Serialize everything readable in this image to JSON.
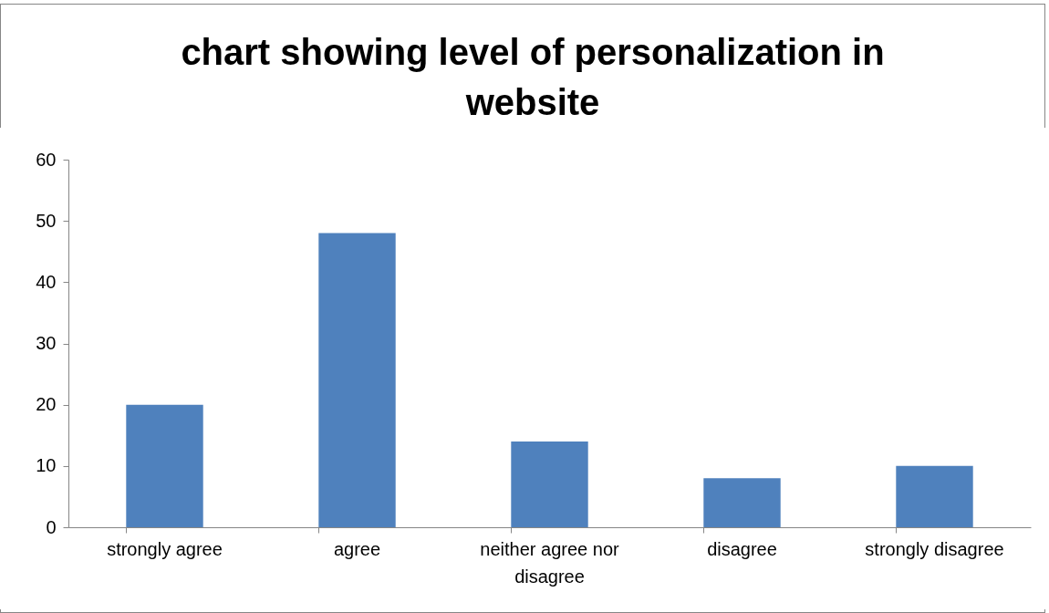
{
  "chart_data": {
    "type": "bar",
    "title": "chart showing level of personalization in website",
    "categories": [
      "strongly agree",
      "agree",
      "neither agree nor disagree",
      "disagree",
      "strongly disagree"
    ],
    "values": [
      20,
      48,
      14,
      8,
      10
    ],
    "color": "#4f81bd",
    "ylim": [
      0,
      60
    ],
    "yticks": [
      0,
      10,
      20,
      30,
      40,
      50,
      60
    ],
    "grid": false
  }
}
